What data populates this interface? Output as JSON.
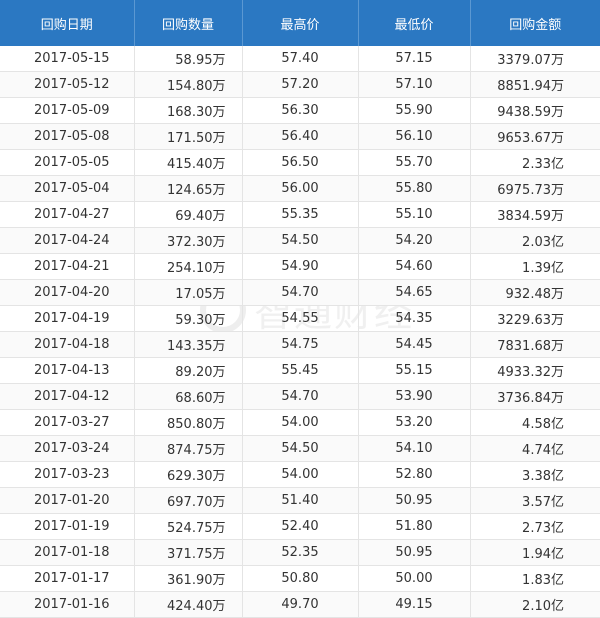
{
  "headers": [
    "回购日期",
    "回购数量",
    "最高价",
    "最低价",
    "回购金额"
  ],
  "rows": [
    [
      "2017-05-15",
      "58.95万",
      "57.40",
      "57.15",
      "3379.07万"
    ],
    [
      "2017-05-12",
      "154.80万",
      "57.20",
      "57.10",
      "8851.94万"
    ],
    [
      "2017-05-09",
      "168.30万",
      "56.30",
      "55.90",
      "9438.59万"
    ],
    [
      "2017-05-08",
      "171.50万",
      "56.40",
      "56.10",
      "9653.67万"
    ],
    [
      "2017-05-05",
      "415.40万",
      "56.50",
      "55.70",
      "2.33亿"
    ],
    [
      "2017-05-04",
      "124.65万",
      "56.00",
      "55.80",
      "6975.73万"
    ],
    [
      "2017-04-27",
      "69.40万",
      "55.35",
      "55.10",
      "3834.59万"
    ],
    [
      "2017-04-24",
      "372.30万",
      "54.50",
      "54.20",
      "2.03亿"
    ],
    [
      "2017-04-21",
      "254.10万",
      "54.90",
      "54.60",
      "1.39亿"
    ],
    [
      "2017-04-20",
      "17.05万",
      "54.70",
      "54.65",
      "932.48万"
    ],
    [
      "2017-04-19",
      "59.30万",
      "54.55",
      "54.35",
      "3229.63万"
    ],
    [
      "2017-04-18",
      "143.35万",
      "54.75",
      "54.45",
      "7831.68万"
    ],
    [
      "2017-04-13",
      "89.20万",
      "55.45",
      "55.15",
      "4933.32万"
    ],
    [
      "2017-04-12",
      "68.60万",
      "54.70",
      "53.90",
      "3736.84万"
    ],
    [
      "2017-03-27",
      "850.80万",
      "54.00",
      "53.20",
      "4.58亿"
    ],
    [
      "2017-03-24",
      "874.75万",
      "54.50",
      "54.10",
      "4.74亿"
    ],
    [
      "2017-03-23",
      "629.30万",
      "54.00",
      "52.80",
      "3.38亿"
    ],
    [
      "2017-01-20",
      "697.70万",
      "51.40",
      "50.95",
      "3.57亿"
    ],
    [
      "2017-01-19",
      "524.75万",
      "52.40",
      "51.80",
      "2.73亿"
    ],
    [
      "2017-01-18",
      "371.75万",
      "52.35",
      "50.95",
      "1.94亿"
    ],
    [
      "2017-01-17",
      "361.90万",
      "50.80",
      "50.00",
      "1.83亿"
    ],
    [
      "2017-01-16",
      "424.40万",
      "49.70",
      "49.15",
      "2.10亿"
    ]
  ],
  "watermark": {
    "text": "智通财经"
  },
  "colors": {
    "header_bg": "#2b78c2",
    "header_text": "#ffffff",
    "cell_text": "#333333",
    "border": "#e4e4e4"
  }
}
